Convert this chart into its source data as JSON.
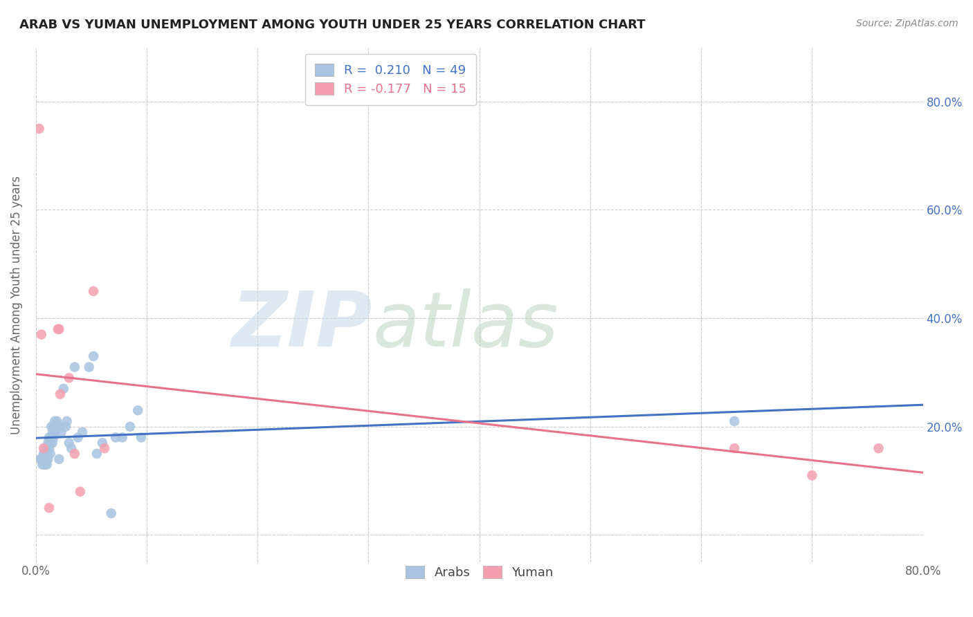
{
  "title": "ARAB VS YUMAN UNEMPLOYMENT AMONG YOUTH UNDER 25 YEARS CORRELATION CHART",
  "source": "Source: ZipAtlas.com",
  "ylabel": "Unemployment Among Youth under 25 years",
  "xlim": [
    0.0,
    0.8
  ],
  "ylim": [
    -0.05,
    0.9
  ],
  "xtick_positions": [
    0.0,
    0.1,
    0.2,
    0.3,
    0.4,
    0.5,
    0.6,
    0.7,
    0.8
  ],
  "xtick_labels": [
    "0.0%",
    "",
    "",
    "",
    "",
    "",
    "",
    "",
    "80.0%"
  ],
  "ytick_positions": [
    0.0,
    0.2,
    0.4,
    0.6,
    0.8
  ],
  "ytick_labels_right": [
    "",
    "20.0%",
    "40.0%",
    "60.0%",
    "80.0%"
  ],
  "arab_color": "#a8c4e0",
  "yuman_color": "#f4a0b0",
  "arab_line_color": "#4472c4",
  "yuman_line_color": "#e8728a",
  "arab_R": 0.21,
  "arab_N": 49,
  "yuman_R": -0.177,
  "yuman_N": 15,
  "background_color": "#ffffff",
  "grid_color": "#cccccc",
  "title_color": "#222222",
  "source_color": "#888888",
  "ylabel_color": "#666666",
  "arab_x": [
    0.004,
    0.005,
    0.006,
    0.007,
    0.008,
    0.008,
    0.009,
    0.009,
    0.01,
    0.01,
    0.011,
    0.011,
    0.012,
    0.012,
    0.013,
    0.013,
    0.014,
    0.014,
    0.015,
    0.015,
    0.016,
    0.016,
    0.017,
    0.017,
    0.018,
    0.019,
    0.02,
    0.021,
    0.022,
    0.023,
    0.025,
    0.027,
    0.028,
    0.03,
    0.032,
    0.035,
    0.038,
    0.042,
    0.048,
    0.052,
    0.055,
    0.06,
    0.068,
    0.072,
    0.078,
    0.085,
    0.092,
    0.095,
    0.63
  ],
  "arab_y": [
    0.14,
    0.14,
    0.13,
    0.15,
    0.13,
    0.15,
    0.14,
    0.16,
    0.13,
    0.15,
    0.14,
    0.17,
    0.16,
    0.18,
    0.17,
    0.15,
    0.18,
    0.2,
    0.17,
    0.19,
    0.2,
    0.18,
    0.19,
    0.21,
    0.2,
    0.21,
    0.2,
    0.14,
    0.2,
    0.19,
    0.27,
    0.2,
    0.21,
    0.17,
    0.16,
    0.31,
    0.18,
    0.19,
    0.31,
    0.33,
    0.15,
    0.17,
    0.04,
    0.18,
    0.18,
    0.2,
    0.23,
    0.18,
    0.21
  ],
  "yuman_x": [
    0.003,
    0.005,
    0.007,
    0.012,
    0.02,
    0.021,
    0.022,
    0.03,
    0.035,
    0.04,
    0.052,
    0.062,
    0.63,
    0.7,
    0.76
  ],
  "yuman_y": [
    0.75,
    0.37,
    0.16,
    0.05,
    0.38,
    0.38,
    0.26,
    0.29,
    0.15,
    0.08,
    0.45,
    0.16,
    0.16,
    0.11,
    0.16
  ]
}
